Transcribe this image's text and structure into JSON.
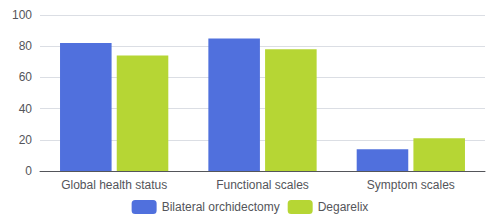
{
  "chart_data": {
    "type": "bar",
    "categories": [
      "Global health status",
      "Functional scales",
      "Symptom scales"
    ],
    "series": [
      {
        "name": "Bilateral orchidectomy",
        "values": [
          82,
          85,
          14
        ]
      },
      {
        "name": "Degarelix",
        "values": [
          74,
          78,
          21
        ]
      }
    ],
    "ylim": [
      0,
      100
    ],
    "yticks": [
      0,
      20,
      40,
      60,
      80,
      100
    ],
    "grid": true,
    "legend": "bottom"
  }
}
